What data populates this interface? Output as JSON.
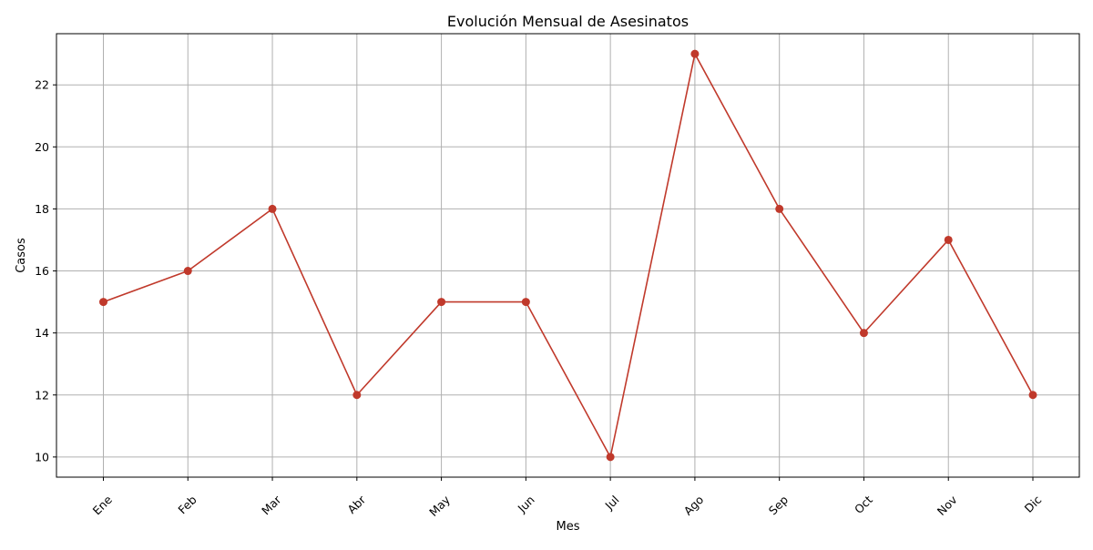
{
  "chart_data": {
    "type": "line",
    "title": "Evolución Mensual de Asesinatos",
    "xlabel": "Mes",
    "ylabel": "Casos",
    "categories": [
      "Ene",
      "Feb",
      "Mar",
      "Abr",
      "May",
      "Jun",
      "Jul",
      "Ago",
      "Sep",
      "Oct",
      "Nov",
      "Dic"
    ],
    "series": [
      {
        "values": [
          15,
          16,
          18,
          12,
          15,
          15,
          10,
          23,
          18,
          14,
          17,
          12
        ],
        "color": "#c0392b",
        "marker": "circle"
      }
    ],
    "yticks": [
      10,
      12,
      14,
      16,
      18,
      20,
      22
    ],
    "ylim": [
      9.35,
      23.65
    ],
    "xtick_rotation": -45,
    "grid": true,
    "legend": false
  }
}
